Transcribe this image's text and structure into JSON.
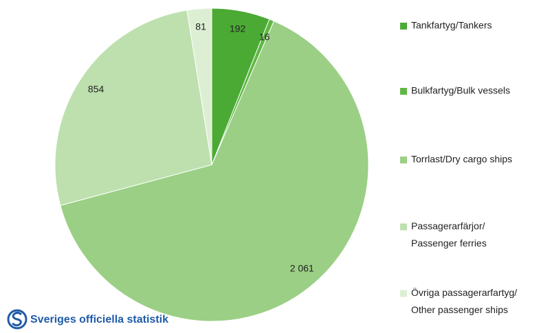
{
  "chart_data": {
    "type": "pie",
    "categories": [
      [
        "Tankfartyg/Tankers"
      ],
      [
        "Bulkfartyg/Bulk vessels"
      ],
      [
        "Torrlast/Dry cargo ships"
      ],
      [
        "Passagerarfärjor/",
        "Passenger ferries"
      ],
      [
        "Övriga passagerarfartyg/",
        "Other passenger ships"
      ]
    ],
    "values": [
      192,
      16,
      2061,
      854,
      81
    ],
    "value_labels": [
      "192",
      "16",
      "2 061",
      "854",
      "81"
    ],
    "colors": [
      "#4aaa34",
      "#5fb844",
      "#9bcf85",
      "#bde0ae",
      "#dcefd3"
    ],
    "legend": "right"
  },
  "footer": {
    "logo_text": "Sveriges officiella statistik"
  }
}
